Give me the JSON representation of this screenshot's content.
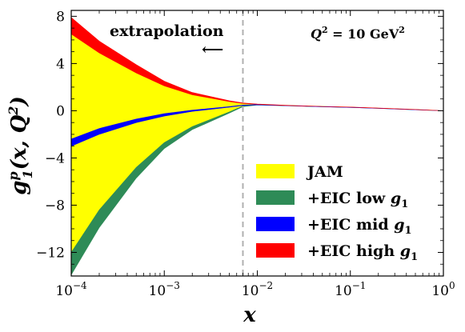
{
  "chart_data": {
    "type": "area",
    "xscale": "log",
    "xlim": [
      0.0001,
      1
    ],
    "ylim": [
      -14,
      8.5
    ],
    "x_ticks": [
      {
        "value": 0.0001,
        "base": "10",
        "exp": "−4"
      },
      {
        "value": 0.001,
        "base": "10",
        "exp": "−3"
      },
      {
        "value": 0.01,
        "base": "10",
        "exp": "−2"
      },
      {
        "value": 0.1,
        "base": "10",
        "exp": "−1"
      },
      {
        "value": 1,
        "base": "10",
        "exp": "0"
      }
    ],
    "y_ticks": [
      {
        "value": 8,
        "label": "8"
      },
      {
        "value": 4,
        "label": "4"
      },
      {
        "value": 0,
        "label": "0"
      },
      {
        "value": -4,
        "label": "−4"
      },
      {
        "value": -8,
        "label": "−8"
      },
      {
        "value": -12,
        "label": "−12"
      }
    ],
    "xlabel": "x",
    "ylabel": {
      "main": "g",
      "sup": "p",
      "sub": "1",
      "args": "(x, Q",
      "args_sup": "2",
      "close": ")"
    },
    "annotation": {
      "text": "extrapolation",
      "arrow": "⟵"
    },
    "q2_label": {
      "lhs": "Q",
      "lhs_sup": "2",
      "rhs": " = 10 GeV",
      "rhs_sup": "2"
    },
    "vline_x": 0.007,
    "x": [
      0.0001,
      0.0002,
      0.0005,
      0.001,
      0.002,
      0.005,
      0.007,
      0.01,
      0.02,
      0.05,
      0.1,
      0.2,
      0.5,
      1
    ],
    "series": [
      {
        "name": "JAM",
        "color": "#ffff00",
        "upper": [
          6.5,
          4.9,
          3.2,
          2.1,
          1.35,
          0.78,
          0.62,
          0.55,
          0.45,
          0.36,
          0.3,
          0.22,
          0.1,
          0.0
        ],
        "lower": [
          -12.0,
          -8.4,
          -4.8,
          -2.7,
          -1.35,
          -0.1,
          0.4,
          0.5,
          0.43,
          0.35,
          0.29,
          0.21,
          0.09,
          0.0
        ]
      },
      {
        "name": "+EIC low g1",
        "color": "#2e8b57",
        "upper": [
          -12.0,
          -8.4,
          -4.8,
          -2.7,
          -1.35,
          -0.1,
          0.4,
          0.5,
          0.43,
          0.35,
          0.29,
          0.21,
          0.09,
          0.0
        ],
        "lower": [
          -13.9,
          -9.9,
          -5.7,
          -3.2,
          -1.6,
          -0.2,
          0.35,
          0.48,
          0.42,
          0.34,
          0.28,
          0.2,
          0.08,
          0.0
        ]
      },
      {
        "name": "+EIC mid g1",
        "color": "#0000ff",
        "upper": [
          -2.4,
          -1.5,
          -0.7,
          -0.25,
          0.05,
          0.35,
          0.48,
          0.52,
          0.44,
          0.35,
          0.29,
          0.21,
          0.09,
          0.0
        ],
        "lower": [
          -3.0,
          -2.0,
          -1.0,
          -0.45,
          -0.05,
          0.3,
          0.45,
          0.5,
          0.43,
          0.34,
          0.28,
          0.2,
          0.08,
          0.0
        ]
      },
      {
        "name": "+EIC high g1",
        "color": "#ff0000",
        "upper": [
          7.9,
          5.9,
          3.9,
          2.5,
          1.55,
          0.85,
          0.66,
          0.57,
          0.46,
          0.37,
          0.31,
          0.23,
          0.11,
          0.0
        ],
        "lower": [
          6.5,
          4.9,
          3.2,
          2.1,
          1.35,
          0.78,
          0.62,
          0.55,
          0.45,
          0.36,
          0.3,
          0.22,
          0.1,
          0.0
        ]
      }
    ],
    "legend": {
      "placement": "lower-right",
      "entries": [
        {
          "color": "#ffff00",
          "text": "JAM",
          "sub": ""
        },
        {
          "color": "#2e8b57",
          "text": "+EIC low g",
          "sub": "1"
        },
        {
          "color": "#0000ff",
          "text": "+EIC mid g",
          "sub": "1"
        },
        {
          "color": "#ff0000",
          "text": "+EIC high g",
          "sub": "1"
        }
      ]
    }
  }
}
